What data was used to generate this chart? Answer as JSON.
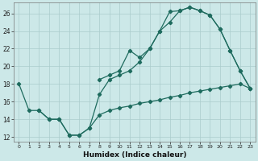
{
  "xlabel": "Humidex (Indice chaleur)",
  "bg_color": "#cce8e8",
  "line_color": "#1e6b5e",
  "grid_color": "#aacccc",
  "xlim": [
    -0.5,
    23.5
  ],
  "ylim": [
    11.5,
    27.2
  ],
  "xticks": [
    0,
    1,
    2,
    3,
    4,
    5,
    6,
    7,
    8,
    9,
    10,
    11,
    12,
    13,
    14,
    15,
    16,
    17,
    18,
    19,
    20,
    21,
    22,
    23
  ],
  "yticks": [
    12,
    14,
    16,
    18,
    20,
    22,
    24,
    26
  ],
  "line1_x": [
    0,
    1,
    2,
    3,
    4,
    5,
    6,
    7,
    8,
    9,
    10,
    11,
    12,
    13,
    14,
    15,
    16,
    17,
    18,
    19,
    20,
    21,
    22,
    23
  ],
  "line1_y": [
    18,
    15,
    15,
    14,
    14,
    12.2,
    12.2,
    13.0,
    16.8,
    18.5,
    19.0,
    19.5,
    20.5,
    22.0,
    24.0,
    26.2,
    26.3,
    26.7,
    26.3,
    25.8,
    24.2,
    21.8,
    19.5,
    17.5
  ],
  "line2_x": [
    2,
    3,
    4,
    5,
    6,
    7,
    8,
    9,
    10,
    11,
    12,
    13,
    14,
    15,
    16,
    17,
    18,
    19,
    20,
    21,
    22,
    23
  ],
  "line2_y": [
    15.0,
    14.0,
    14.0,
    12.2,
    12.2,
    13.0,
    14.5,
    15.0,
    15.3,
    15.5,
    15.8,
    16.0,
    16.2,
    16.5,
    16.7,
    17.0,
    17.2,
    17.4,
    17.6,
    17.8,
    18.0,
    17.5
  ],
  "line3_x": [
    8,
    9,
    10,
    11,
    12,
    13,
    14,
    15,
    16,
    17,
    18,
    19,
    20,
    21,
    22,
    23
  ],
  "line3_y": [
    18.5,
    19.0,
    19.5,
    21.8,
    21.0,
    22.0,
    24.0,
    25.0,
    26.3,
    26.7,
    26.3,
    25.8,
    24.2,
    21.8,
    19.5,
    17.5
  ]
}
